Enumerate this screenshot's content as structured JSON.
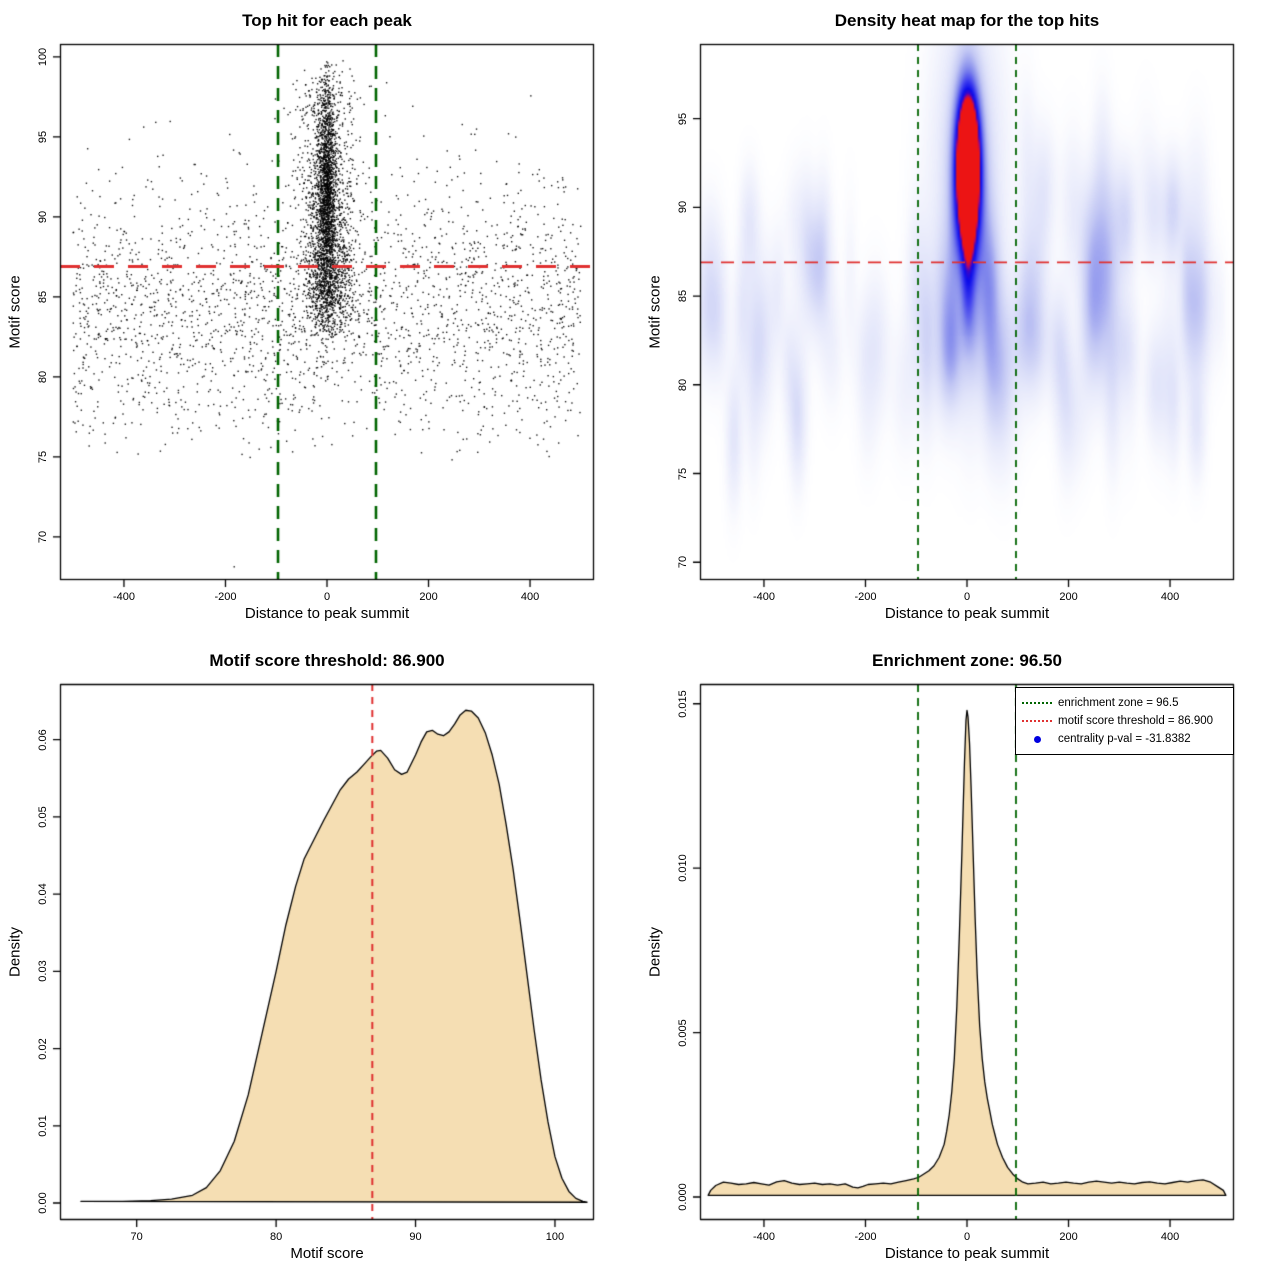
{
  "page": {
    "background": "#ffffff"
  },
  "chart_data": [
    {
      "id": "top-hit-scatter",
      "type": "scatter",
      "title": "Top hit for each peak",
      "xlabel": "Distance to peak summit",
      "ylabel": "Motif score",
      "xlim": [
        -526,
        526
      ],
      "ylim": [
        67.3,
        100.8
      ],
      "xticks": {
        "values": [
          -400,
          -200,
          0,
          200,
          400
        ],
        "labels": [
          "-400",
          "-200",
          "0",
          "200",
          "400"
        ]
      },
      "yticks": {
        "values": [
          70,
          75,
          80,
          85,
          90,
          95,
          100
        ],
        "labels": [
          "70",
          "75",
          "80",
          "85",
          "90",
          "95",
          "100"
        ]
      },
      "point_color": "#000000",
      "ref_lines": [
        {
          "orient": "v",
          "at": -96.5,
          "color": "#006400",
          "width": 2.6,
          "dash": [
            13,
            9
          ]
        },
        {
          "orient": "v",
          "at": 96.5,
          "color": "#006400",
          "width": 2.6,
          "dash": [
            13,
            9
          ]
        },
        {
          "orient": "h",
          "at": 86.9,
          "color": "#e03131",
          "width": 3,
          "dash": [
            20,
            14
          ]
        }
      ],
      "points": {
        "seed": 20240612,
        "clusters": [
          {
            "n": 2400,
            "x": {
              "dist": "uniform",
              "min": -500,
              "max": 500
            },
            "y": {
              "dist": "normal",
              "mean": 84.2,
              "sd": 4.2,
              "min": 74.8,
              "max": 97.6
            }
          },
          {
            "n": 1500,
            "x": {
              "dist": "normal",
              "mean": 0,
              "sd": 9,
              "min": -60,
              "max": 60
            },
            "y": {
              "dist": "normal",
              "mean": 92.0,
              "sd": 3.3,
              "min": 83.0,
              "max": 99.7
            }
          },
          {
            "n": 1100,
            "x": {
              "dist": "normal",
              "mean": 0,
              "sd": 27,
              "min": -130,
              "max": 130
            },
            "y": {
              "dist": "normal",
              "mean": 90.5,
              "sd": 3.8,
              "min": 82.0,
              "max": 99.0
            }
          },
          {
            "n": 650,
            "x": {
              "dist": "normal",
              "mean": 2,
              "sd": 22,
              "min": -110,
              "max": 110
            },
            "y": {
              "dist": "normal",
              "mean": 85.6,
              "sd": 1.6,
              "min": 82.5,
              "max": 89.5
            }
          },
          {
            "n": 100,
            "x": {
              "dist": "normal",
              "mean": 0,
              "sd": 40,
              "min": -150,
              "max": 150
            },
            "y": {
              "dist": "normal",
              "mean": 97.3,
              "sd": 1.0,
              "min": 95.5,
              "max": 99.8
            }
          },
          {
            "n": 1,
            "x": {
              "dist": "uniform",
              "min": -183,
              "max": -181
            },
            "y": {
              "dist": "uniform",
              "min": 68.1,
              "max": 68.3
            }
          }
        ]
      }
    },
    {
      "id": "density-heatmap",
      "type": "heatmap",
      "title": "Density heat map for the top hits",
      "xlabel": "Distance to peak summit",
      "ylabel": "Motif score",
      "xlim": [
        -526,
        526
      ],
      "ylim": [
        69.0,
        99.2
      ],
      "xticks": {
        "values": [
          -400,
          -200,
          0,
          200,
          400
        ],
        "labels": [
          "-400",
          "-200",
          "0",
          "200",
          "400"
        ]
      },
      "yticks": {
        "values": [
          70,
          75,
          80,
          85,
          90,
          95
        ],
        "labels": [
          "70",
          "75",
          "80",
          "85",
          "90",
          "95"
        ]
      },
      "colormap": [
        [
          0.0,
          "#ffffff"
        ],
        [
          0.05,
          "#f4f5fd"
        ],
        [
          0.15,
          "#e2e5fa"
        ],
        [
          0.3,
          "#c3c8f4"
        ],
        [
          0.5,
          "#8289ec"
        ],
        [
          0.68,
          "#3c3cee"
        ],
        [
          0.82,
          "#0b0bea"
        ],
        [
          0.9,
          "#3a06c8"
        ],
        [
          0.95,
          "#b0086a"
        ],
        [
          1.0,
          "#ec1414"
        ]
      ],
      "kernels": {
        "seed": 777,
        "main": [
          {
            "x": 0,
            "y": 92.5,
            "sx": 17,
            "sy": 3.0,
            "w": 1.7
          },
          {
            "x": 0,
            "y": 88.3,
            "sx": 11,
            "sy": 2.6,
            "w": 0.36
          },
          {
            "x": 0,
            "y": 84.6,
            "sx": 10,
            "sy": 2.0,
            "w": 0.22
          },
          {
            "x": 0,
            "y": 92.0,
            "sx": 45,
            "sy": 6.0,
            "w": 0.26
          }
        ],
        "background": {
          "n": 95,
          "x_min": -515,
          "x_max": 515,
          "y_mean": 84.5,
          "y_sd": 4.0,
          "y_min": 77.0,
          "y_max": 93.0,
          "sx_min": 9,
          "sx_max": 20,
          "sy_min": 1.8,
          "sy_max": 3.4,
          "w_min": 0.04,
          "w_max": 0.13
        }
      },
      "ref_lines": [
        {
          "orient": "v",
          "at": -96.5,
          "color": "#006400",
          "width": 1.8,
          "dash": [
            7,
            6
          ]
        },
        {
          "orient": "v",
          "at": 96.5,
          "color": "#006400",
          "width": 1.8,
          "dash": [
            7,
            6
          ]
        },
        {
          "orient": "h",
          "at": 86.9,
          "color": "#e03131",
          "width": 1.8,
          "dash": [
            13,
            8
          ]
        }
      ]
    },
    {
      "id": "motif-score-density",
      "type": "density",
      "title": "Motif score threshold: 86.900",
      "xlabel": "Motif score",
      "ylabel": "Density",
      "xlim": [
        64.5,
        102.8
      ],
      "ylim": [
        -0.0022,
        0.0672
      ],
      "xticks": {
        "values": [
          70,
          80,
          90,
          100
        ],
        "labels": [
          "70",
          "80",
          "90",
          "100"
        ]
      },
      "yticks": {
        "values": [
          0.0,
          0.01,
          0.02,
          0.03,
          0.04,
          0.05,
          0.06
        ],
        "labels": [
          "0.00",
          "0.01",
          "0.02",
          "0.03",
          "0.04",
          "0.05",
          "0.06"
        ]
      },
      "fill": "#f5deb3",
      "stroke": "#000000",
      "ref_lines": [
        {
          "orient": "v",
          "at": 86.9,
          "color": "#e03131",
          "width": 2,
          "dash": [
            7,
            6
          ]
        }
      ],
      "curve": [
        [
          66,
          0.0002
        ],
        [
          69,
          0.0002
        ],
        [
          71,
          0.0003
        ],
        [
          72.5,
          0.0005
        ],
        [
          74,
          0.001
        ],
        [
          75,
          0.002
        ],
        [
          76,
          0.0042
        ],
        [
          77,
          0.008
        ],
        [
          78,
          0.014
        ],
        [
          79,
          0.022
        ],
        [
          80,
          0.03
        ],
        [
          80.7,
          0.036
        ],
        [
          81.4,
          0.041
        ],
        [
          82,
          0.0445
        ],
        [
          82.7,
          0.047
        ],
        [
          83.4,
          0.0495
        ],
        [
          84,
          0.0515
        ],
        [
          84.6,
          0.0535
        ],
        [
          85.2,
          0.0549
        ],
        [
          85.8,
          0.0558
        ],
        [
          86.3,
          0.0568
        ],
        [
          86.8,
          0.0578
        ],
        [
          87.2,
          0.0585
        ],
        [
          87.5,
          0.0586
        ],
        [
          88,
          0.0576
        ],
        [
          88.5,
          0.0561
        ],
        [
          89,
          0.0555
        ],
        [
          89.4,
          0.0558
        ],
        [
          90,
          0.058
        ],
        [
          90.4,
          0.0597
        ],
        [
          90.8,
          0.061
        ],
        [
          91.2,
          0.0612
        ],
        [
          91.6,
          0.0607
        ],
        [
          92,
          0.0605
        ],
        [
          92.4,
          0.061
        ],
        [
          92.8,
          0.062
        ],
        [
          93.2,
          0.0632
        ],
        [
          93.6,
          0.0638
        ],
        [
          94,
          0.0637
        ],
        [
          94.5,
          0.0628
        ],
        [
          95,
          0.0609
        ],
        [
          95.5,
          0.058
        ],
        [
          96,
          0.0542
        ],
        [
          96.5,
          0.049
        ],
        [
          97,
          0.0432
        ],
        [
          97.5,
          0.0365
        ],
        [
          98,
          0.0295
        ],
        [
          98.5,
          0.0225
        ],
        [
          99,
          0.016
        ],
        [
          99.5,
          0.0105
        ],
        [
          100,
          0.006
        ],
        [
          100.5,
          0.0032
        ],
        [
          101,
          0.0015
        ],
        [
          101.5,
          0.0006
        ],
        [
          102,
          0.0002
        ],
        [
          102.3,
          0.0001
        ]
      ]
    },
    {
      "id": "enrichment-zone-density",
      "type": "density",
      "title": "Enrichment zone: 96.50",
      "xlabel": "Distance to peak summit",
      "ylabel": "Density",
      "xlim": [
        -526,
        526
      ],
      "ylim": [
        -0.0007,
        0.0156
      ],
      "xticks": {
        "values": [
          -400,
          -200,
          0,
          200,
          400
        ],
        "labels": [
          "-400",
          "-200",
          "0",
          "200",
          "400"
        ]
      },
      "yticks": {
        "values": [
          0.0,
          0.005,
          0.01,
          0.015
        ],
        "labels": [
          "0.000",
          "0.005",
          "0.010",
          "0.015"
        ]
      },
      "fill": "#f5deb3",
      "stroke": "#000000",
      "ref_lines": [
        {
          "orient": "v",
          "at": -96.5,
          "color": "#006400",
          "width": 1.8,
          "dash": [
            8,
            6
          ]
        },
        {
          "orient": "v",
          "at": 96.5,
          "color": "#006400",
          "width": 1.8,
          "dash": [
            8,
            6
          ]
        }
      ],
      "curve": [
        [
          -510,
          5e-05
        ],
        [
          -505,
          0.0002
        ],
        [
          -495,
          0.00035
        ],
        [
          -480,
          0.00045
        ],
        [
          -465,
          0.00042
        ],
        [
          -450,
          0.00038
        ],
        [
          -435,
          0.0004
        ],
        [
          -420,
          0.00044
        ],
        [
          -405,
          0.0004
        ],
        [
          -390,
          0.00036
        ],
        [
          -375,
          0.00046
        ],
        [
          -360,
          0.0005
        ],
        [
          -345,
          0.00042
        ],
        [
          -330,
          0.00038
        ],
        [
          -315,
          0.0004
        ],
        [
          -300,
          0.00042
        ],
        [
          -285,
          0.00038
        ],
        [
          -270,
          0.0004
        ],
        [
          -255,
          0.00036
        ],
        [
          -240,
          0.0004
        ],
        [
          -225,
          0.0003
        ],
        [
          -215,
          0.00028
        ],
        [
          -205,
          0.00032
        ],
        [
          -195,
          0.00038
        ],
        [
          -180,
          0.0004
        ],
        [
          -165,
          0.00042
        ],
        [
          -150,
          0.0004
        ],
        [
          -135,
          0.00045
        ],
        [
          -120,
          0.0005
        ],
        [
          -105,
          0.00055
        ],
        [
          -95,
          0.0006
        ],
        [
          -85,
          0.0007
        ],
        [
          -75,
          0.0008
        ],
        [
          -65,
          0.00095
        ],
        [
          -55,
          0.0012
        ],
        [
          -45,
          0.0016
        ],
        [
          -40,
          0.002
        ],
        [
          -35,
          0.0025
        ],
        [
          -30,
          0.0032
        ],
        [
          -25,
          0.0042
        ],
        [
          -20,
          0.0058
        ],
        [
          -15,
          0.008
        ],
        [
          -10,
          0.0105
        ],
        [
          -5,
          0.0132
        ],
        [
          -2,
          0.0145
        ],
        [
          0,
          0.0148
        ],
        [
          2,
          0.0146
        ],
        [
          5,
          0.0138
        ],
        [
          8,
          0.0125
        ],
        [
          12,
          0.0105
        ],
        [
          16,
          0.0085
        ],
        [
          20,
          0.0068
        ],
        [
          25,
          0.0052
        ],
        [
          30,
          0.0042
        ],
        [
          35,
          0.0035
        ],
        [
          40,
          0.003
        ],
        [
          45,
          0.0026
        ],
        [
          50,
          0.0022
        ],
        [
          55,
          0.0019
        ],
        [
          60,
          0.0016
        ],
        [
          70,
          0.0012
        ],
        [
          80,
          0.0009
        ],
        [
          90,
          0.0007
        ],
        [
          100,
          0.00055
        ],
        [
          110,
          0.00045
        ],
        [
          120,
          0.0004
        ],
        [
          135,
          0.00042
        ],
        [
          150,
          0.00045
        ],
        [
          165,
          0.0004
        ],
        [
          180,
          0.00042
        ],
        [
          195,
          0.00045
        ],
        [
          210,
          0.00042
        ],
        [
          225,
          0.0004
        ],
        [
          240,
          0.00045
        ],
        [
          255,
          0.00048
        ],
        [
          270,
          0.00045
        ],
        [
          285,
          0.00042
        ],
        [
          300,
          0.00045
        ],
        [
          315,
          0.00042
        ],
        [
          330,
          0.0004
        ],
        [
          345,
          0.00044
        ],
        [
          360,
          0.00046
        ],
        [
          375,
          0.00042
        ],
        [
          390,
          0.0004
        ],
        [
          405,
          0.00044
        ],
        [
          420,
          0.00048
        ],
        [
          435,
          0.00045
        ],
        [
          450,
          0.0005
        ],
        [
          465,
          0.00052
        ],
        [
          480,
          0.00045
        ],
        [
          495,
          0.0003
        ],
        [
          505,
          0.0002
        ],
        [
          510,
          5e-05
        ]
      ],
      "legend": {
        "entries": [
          {
            "swatch": "green-dotted-line",
            "color": "#006400",
            "label": "enrichment zone = 96.5"
          },
          {
            "swatch": "red-dotted-line",
            "color": "#e03131",
            "label": "motif score threshold = 86.900"
          },
          {
            "swatch": "blue-dot",
            "color": "#0000e0",
            "label": "centrality p-val = -31.8382"
          }
        ]
      }
    }
  ]
}
